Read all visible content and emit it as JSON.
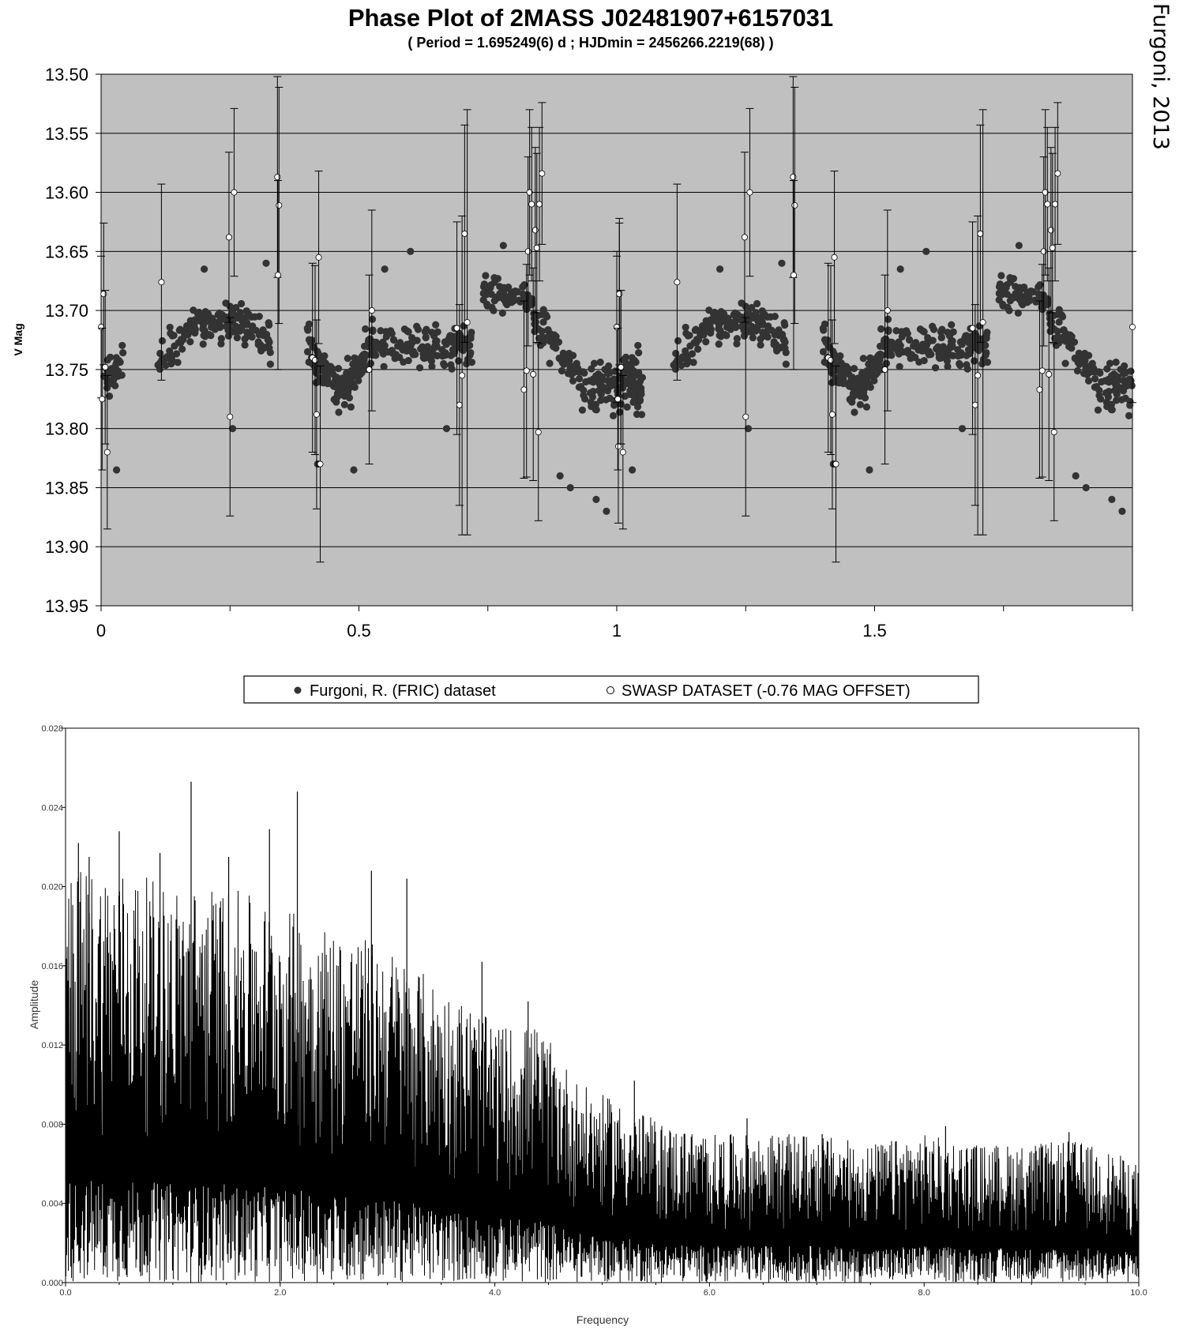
{
  "credit": "Furgoni, 2013",
  "colors": {
    "plot_background": "#c0c0c0",
    "filled_marker": "#333333",
    "open_marker_fill": "#ffffff",
    "line": "#000000"
  },
  "chart_data": [
    {
      "type": "scatter",
      "title": "Phase Plot of 2MASS J02481907+6157031",
      "subtitle": "( Period = 1.695249(6) d ; HJDmin = 2456266.2219(68) )",
      "xlabel": "",
      "ylabel": "V Mag",
      "xlim": [
        0,
        2
      ],
      "ylim": [
        13.95,
        13.5
      ],
      "y_reversed": true,
      "x_ticks": [
        "0",
        "0.5",
        "1",
        "1.5"
      ],
      "x_tick_values": [
        0,
        0.5,
        1,
        1.5
      ],
      "y_ticks": [
        "13.50",
        "13.55",
        "13.60",
        "13.65",
        "13.70",
        "13.75",
        "13.80",
        "13.85",
        "13.90",
        "13.95"
      ],
      "y_tick_values": [
        13.5,
        13.55,
        13.6,
        13.65,
        13.7,
        13.75,
        13.8,
        13.85,
        13.9,
        13.95
      ],
      "grid": "horizontal",
      "legend_position": "bottom",
      "series": [
        {
          "name": "Furgoni, R. (FRIC) dataset",
          "marker": "filled-circle",
          "segments": [
            {
              "x": [
                0.0,
                0.05
              ],
              "y": [
                13.76,
                13.74
              ],
              "spread": 0.03,
              "n": 30
            },
            {
              "x": [
                0.11,
                0.2
              ],
              "y": [
                13.74,
                13.71
              ],
              "spread": 0.028,
              "n": 60
            },
            {
              "x": [
                0.2,
                0.27
              ],
              "y": [
                13.71,
                13.71
              ],
              "spread": 0.028,
              "n": 60
            },
            {
              "x": [
                0.27,
                0.33
              ],
              "y": [
                13.71,
                13.73
              ],
              "spread": 0.028,
              "n": 45
            },
            {
              "x": [
                0.4,
                0.46
              ],
              "y": [
                13.73,
                13.77
              ],
              "spread": 0.033,
              "n": 70
            },
            {
              "x": [
                0.46,
                0.53
              ],
              "y": [
                13.77,
                13.73
              ],
              "spread": 0.035,
              "n": 80
            },
            {
              "x": [
                0.53,
                0.72
              ],
              "y": [
                13.73,
                13.73
              ],
              "spread": 0.03,
              "n": 150
            },
            {
              "x": [
                0.74,
                0.83
              ],
              "y": [
                13.68,
                13.69
              ],
              "spread": 0.026,
              "n": 60
            },
            {
              "x": [
                0.83,
                0.93
              ],
              "y": [
                13.7,
                13.76
              ],
              "spread": 0.03,
              "n": 70
            },
            {
              "x": [
                0.93,
                1.05
              ],
              "y": [
                13.76,
                13.77
              ],
              "spread": 0.035,
              "n": 110
            }
          ],
          "outliers": [
            {
              "x": 0.2,
              "y": 13.665
            },
            {
              "x": 0.255,
              "y": 13.8
            },
            {
              "x": 0.32,
              "y": 13.66
            },
            {
              "x": 0.49,
              "y": 13.835
            },
            {
              "x": 0.55,
              "y": 13.665
            },
            {
              "x": 0.78,
              "y": 13.645
            },
            {
              "x": 0.89,
              "y": 13.84
            },
            {
              "x": 0.91,
              "y": 13.85
            },
            {
              "x": 0.98,
              "y": 13.87
            },
            {
              "x": 0.96,
              "y": 13.86
            },
            {
              "x": 0.67,
              "y": 13.8
            },
            {
              "x": 0.03,
              "y": 13.835
            },
            {
              "x": 0.6,
              "y": 13.65
            },
            {
              "x": 0.42,
              "y": 13.83
            }
          ]
        },
        {
          "name": "SWASP DATASET (-0.76 MAG OFFSET)",
          "marker": "open-circle",
          "points": [
            {
              "x": 0.0,
              "y": 13.714,
              "err": 0.06
            },
            {
              "x": 0.002,
              "y": 13.775,
              "err": 0.06
            },
            {
              "x": 0.005,
              "y": 13.686,
              "err": 0.06
            },
            {
              "x": 0.008,
              "y": 13.748,
              "err": 0.065
            },
            {
              "x": 0.012,
              "y": 13.82,
              "err": 0.065
            },
            {
              "x": 0.117,
              "y": 13.676,
              "err": 0.083
            },
            {
              "x": 0.248,
              "y": 13.638,
              "err": 0.072
            },
            {
              "x": 0.25,
              "y": 13.79,
              "err": 0.084
            },
            {
              "x": 0.258,
              "y": 13.6,
              "err": 0.071
            },
            {
              "x": 0.342,
              "y": 13.587,
              "err": 0.085
            },
            {
              "x": 0.345,
              "y": 13.611,
              "err": 0.1
            },
            {
              "x": 0.343,
              "y": 13.67,
              "err": 0.08
            },
            {
              "x": 0.41,
              "y": 13.74,
              "err": 0.08
            },
            {
              "x": 0.415,
              "y": 13.742,
              "err": 0.08
            },
            {
              "x": 0.418,
              "y": 13.788,
              "err": 0.08
            },
            {
              "x": 0.422,
              "y": 13.655,
              "err": 0.073
            },
            {
              "x": 0.425,
              "y": 13.83,
              "err": 0.083
            },
            {
              "x": 0.52,
              "y": 13.75,
              "err": 0.08
            },
            {
              "x": 0.525,
              "y": 13.7,
              "err": 0.085
            },
            {
              "x": 0.69,
              "y": 13.715,
              "err": 0.09
            },
            {
              "x": 0.695,
              "y": 13.78,
              "err": 0.085
            },
            {
              "x": 0.7,
              "y": 13.755,
              "err": 0.135
            },
            {
              "x": 0.705,
              "y": 13.635,
              "err": 0.092
            },
            {
              "x": 0.71,
              "y": 13.71,
              "err": 0.18
            },
            {
              "x": 0.82,
              "y": 13.767,
              "err": 0.075
            },
            {
              "x": 0.825,
              "y": 13.751,
              "err": 0.09
            },
            {
              "x": 0.828,
              "y": 13.65,
              "err": 0.08
            },
            {
              "x": 0.831,
              "y": 13.6,
              "err": 0.07
            },
            {
              "x": 0.835,
              "y": 13.61,
              "err": 0.065
            },
            {
              "x": 0.838,
              "y": 13.754,
              "err": 0.09
            },
            {
              "x": 0.842,
              "y": 13.632,
              "err": 0.07
            },
            {
              "x": 0.845,
              "y": 13.647,
              "err": 0.08
            },
            {
              "x": 0.848,
              "y": 13.803,
              "err": 0.075
            },
            {
              "x": 0.85,
              "y": 13.61,
              "err": 0.065
            },
            {
              "x": 0.855,
              "y": 13.584,
              "err": 0.06
            },
            {
              "x": 1.0,
              "y": 13.714,
              "err": 0.064
            },
            {
              "x": 1.005,
              "y": 13.686,
              "err": 0.064
            },
            {
              "x": 1.008,
              "y": 13.748,
              "err": 0.065
            },
            {
              "x": 1.003,
              "y": 13.815,
              "err": 0.065
            }
          ]
        }
      ]
    },
    {
      "type": "line",
      "title": "",
      "xlabel": "Frequency",
      "ylabel": "Amplitude",
      "xlim": [
        0,
        10
      ],
      "ylim": [
        0,
        0.028
      ],
      "x_ticks": [
        "0.0",
        "2.0",
        "4.0",
        "6.0",
        "8.0",
        "10.0"
      ],
      "x_tick_values": [
        0,
        2,
        4,
        6,
        8,
        10
      ],
      "y_ticks": [
        "0.000",
        "0.004",
        "0.008",
        "0.012",
        "0.016",
        "0.020",
        "0.024",
        "0.028"
      ],
      "y_tick_values": [
        0,
        0.004,
        0.008,
        0.012,
        0.016,
        0.02,
        0.024,
        0.028
      ],
      "grid": "off",
      "envelope": {
        "frequency": [
          0.0,
          0.5,
          1.0,
          1.5,
          2.0,
          2.5,
          3.0,
          3.5,
          3.8,
          4.0,
          4.4,
          4.8,
          5.2,
          5.6,
          6.0,
          6.5,
          7.0,
          7.5,
          8.0,
          8.5,
          9.0,
          9.4,
          9.8,
          10.0
        ],
        "peak_amplitude": [
          0.021,
          0.021,
          0.02,
          0.02,
          0.019,
          0.018,
          0.017,
          0.015,
          0.014,
          0.013,
          0.013,
          0.01,
          0.009,
          0.008,
          0.0075,
          0.0075,
          0.0075,
          0.007,
          0.0075,
          0.007,
          0.007,
          0.0072,
          0.0065,
          0.006
        ]
      },
      "peaks": [
        {
          "x": 1.17,
          "y": 0.0253
        },
        {
          "x": 2.16,
          "y": 0.0248
        },
        {
          "x": 0.5,
          "y": 0.0228
        },
        {
          "x": 1.9,
          "y": 0.0229
        },
        {
          "x": 0.12,
          "y": 0.0222
        },
        {
          "x": 0.22,
          "y": 0.0215
        },
        {
          "x": 0.88,
          "y": 0.0217
        },
        {
          "x": 1.52,
          "y": 0.0215
        },
        {
          "x": 2.85,
          "y": 0.0208
        },
        {
          "x": 3.18,
          "y": 0.0204
        },
        {
          "x": 3.88,
          "y": 0.0162
        },
        {
          "x": 4.31,
          "y": 0.0142
        },
        {
          "x": 5.3,
          "y": 0.0102
        },
        {
          "x": 6.35,
          "y": 0.0083
        },
        {
          "x": 7.05,
          "y": 0.0075
        },
        {
          "x": 8.2,
          "y": 0.0079
        },
        {
          "x": 9.35,
          "y": 0.0076
        }
      ]
    }
  ]
}
